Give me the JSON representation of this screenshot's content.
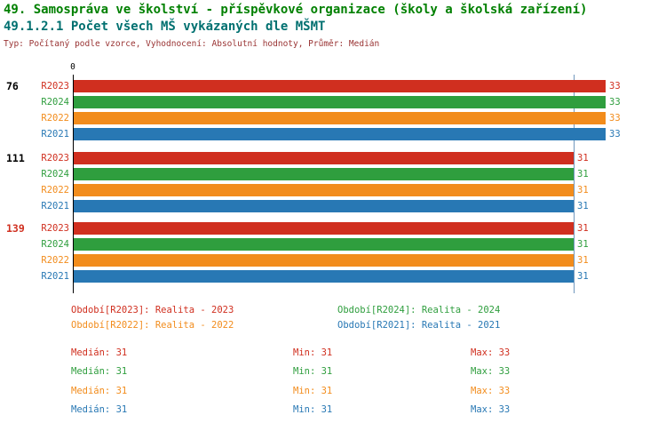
{
  "header": {
    "title": "49. Samospráva ve školství - příspěvkové organizace (školy a školská zařízení)",
    "subtitle": "49.1.2.1 Počet všech MŠ vykázaných dle MŠMT",
    "meta": "Typ: Počítaný podle vzorce, Vyhodnocení: Absolutní hodnoty, Průměr: Medián",
    "title_color": "#008000",
    "subtitle_color": "#007070",
    "meta_color": "#993333"
  },
  "chart_data": {
    "type": "bar",
    "orientation": "horizontal",
    "title": "49.1.2.1 Počet všech MŠ vykázaných dle MŠMT",
    "axis_origin_label": "0",
    "xlim": [
      0,
      34
    ],
    "median_line_value": 31,
    "gridline_color": "#7097bd",
    "categories": [
      "76",
      "111",
      "139"
    ],
    "category_label_colors": [
      "#000000",
      "#000000",
      "#d02f1f"
    ],
    "series": [
      {
        "name": "R2023",
        "color": "#d02f1f",
        "values": [
          33,
          31,
          31
        ]
      },
      {
        "name": "R2024",
        "color": "#2f9e3e",
        "values": [
          33,
          31,
          31
        ]
      },
      {
        "name": "R2022",
        "color": "#f28c1c",
        "values": [
          33,
          31,
          31
        ]
      },
      {
        "name": "R2021",
        "color": "#2878b4",
        "values": [
          33,
          31,
          31
        ]
      }
    ],
    "legend_position": "bottom",
    "grid": "median-line-only"
  },
  "legend": [
    {
      "label": "Období[R2023]: Realita - 2023",
      "color": "#d02f1f"
    },
    {
      "label": "Období[R2024]: Realita - 2024",
      "color": "#2f9e3e"
    },
    {
      "label": "Období[R2022]: Realita - 2022",
      "color": "#f28c1c"
    },
    {
      "label": "Období[R2021]: Realita - 2021",
      "color": "#2878b4"
    }
  ],
  "stats": [
    {
      "series": "R2023",
      "color": "#d02f1f",
      "median": "Medián: 31",
      "min": "Min: 31",
      "max": "Max: 33"
    },
    {
      "series": "R2024",
      "color": "#2f9e3e",
      "median": "Medián: 31",
      "min": "Min: 31",
      "max": "Max: 33"
    },
    {
      "series": "R2022",
      "color": "#f28c1c",
      "median": "Medián: 31",
      "min": "Min: 31",
      "max": "Max: 33"
    },
    {
      "series": "R2021",
      "color": "#2878b4",
      "median": "Medián: 31",
      "min": "Min: 31",
      "max": "Max: 33"
    }
  ]
}
